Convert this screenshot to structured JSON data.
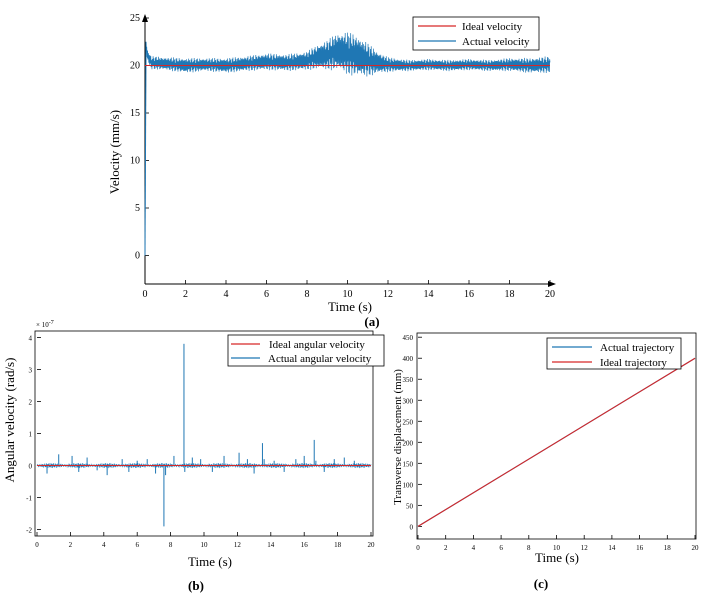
{
  "chart_data": [
    {
      "id": "a",
      "type": "line",
      "panel_label": "(a)",
      "xlabel": "Time (s)",
      "ylabel": "Velocity (mm/s)",
      "xlim": [
        0,
        20
      ],
      "ylim": [
        -3,
        25
      ],
      "xticks": [
        0,
        2,
        4,
        6,
        8,
        10,
        12,
        14,
        16,
        18,
        20
      ],
      "yticks": [
        0,
        5,
        10,
        15,
        20,
        25
      ],
      "legend_position": "top-right",
      "series": [
        {
          "name": "Ideal velocity",
          "color": "#d62728",
          "x": [
            0,
            20
          ],
          "y": [
            20,
            20
          ]
        },
        {
          "name": "Actual velocity",
          "color": "#1f77b4",
          "x": [
            0,
            0.05,
            0.1,
            0.3,
            1,
            2,
            3,
            4,
            5,
            6,
            7,
            8,
            8.5,
            9,
            9.5,
            10,
            10.5,
            11,
            11.5,
            12,
            13,
            14,
            15,
            16,
            17,
            18,
            19,
            20
          ],
          "y": [
            0,
            22.5,
            21.2,
            20.3,
            20.2,
            20.0,
            20.1,
            20.0,
            20.2,
            20.4,
            20.3,
            20.5,
            20.9,
            21.1,
            21.5,
            21.3,
            21.0,
            20.6,
            20.3,
            20.1,
            20.0,
            20.1,
            20.0,
            20.1,
            20.0,
            20.1,
            20.0,
            20.1
          ],
          "oscillation_amplitude": [
            0,
            0.6,
            0.6,
            0.7,
            0.7,
            0.8,
            0.7,
            0.8,
            0.8,
            0.9,
            0.9,
            1.0,
            1.3,
            1.6,
            2.0,
            2.3,
            2.2,
            1.8,
            1.2,
            0.8,
            0.6,
            0.6,
            0.6,
            0.6,
            0.6,
            0.7,
            0.8,
            0.9
          ]
        }
      ]
    },
    {
      "id": "b",
      "type": "line",
      "panel_label": "(b)",
      "xlabel": "Time (s)",
      "ylabel": "Angular velocity (rad/s)",
      "y_multiplier": "× 10",
      "y_exponent": "-7",
      "xlim": [
        0,
        20
      ],
      "ylim": [
        -2.2,
        4.2
      ],
      "xticks": [
        0,
        2,
        4,
        6,
        8,
        10,
        12,
        14,
        16,
        18,
        20
      ],
      "yticks": [
        -2,
        -1,
        0,
        1,
        2,
        3,
        4
      ],
      "legend_position": "top-right",
      "series": [
        {
          "name": "Ideal angular velocity",
          "color": "#d62728",
          "x": [
            0,
            20
          ],
          "y": [
            0,
            0
          ]
        },
        {
          "name": "Actual angular velocity",
          "color": "#1f77b4",
          "spikes_x": [
            0.6,
            1.3,
            2.1,
            2.5,
            3.0,
            3.6,
            4.2,
            5.1,
            5.5,
            6.0,
            6.6,
            7.1,
            7.6,
            7.7,
            8.2,
            8.8,
            8.85,
            9.3,
            9.8,
            10.5,
            11.2,
            12.1,
            12.6,
            13.0,
            13.5,
            13.6,
            14.2,
            14.8,
            15.5,
            16.0,
            16.6,
            16.7,
            17.2,
            17.8,
            18.4,
            19.0
          ],
          "spikes_y": [
            -0.25,
            0.35,
            0.3,
            -0.2,
            0.25,
            -0.15,
            -0.3,
            0.2,
            -0.2,
            0.15,
            0.2,
            -0.25,
            -1.9,
            -0.3,
            0.3,
            3.8,
            -0.2,
            0.25,
            0.2,
            -0.2,
            0.3,
            0.4,
            0.2,
            -0.25,
            0.7,
            0.2,
            0.15,
            -0.2,
            0.2,
            0.3,
            0.8,
            0.15,
            -0.2,
            0.2,
            0.25,
            0.15
          ]
        }
      ]
    },
    {
      "id": "c",
      "type": "line",
      "panel_label": "(c)",
      "xlabel": "Time (s)",
      "ylabel": "Transverse displacement (mm)",
      "xlim": [
        0,
        20
      ],
      "ylim": [
        -30,
        460
      ],
      "xticks": [
        0,
        2,
        4,
        6,
        8,
        10,
        12,
        14,
        16,
        18,
        20
      ],
      "yticks": [
        0,
        50,
        100,
        150,
        200,
        250,
        300,
        350,
        400,
        450
      ],
      "legend_position": "top-right",
      "series": [
        {
          "name": "Actual trajectory",
          "color": "#1f77b4",
          "x": [
            0,
            20
          ],
          "y": [
            0,
            400
          ]
        },
        {
          "name": "Ideal trajectory",
          "color": "#d62728",
          "x": [
            0,
            20
          ],
          "y": [
            0,
            400
          ]
        }
      ]
    }
  ]
}
